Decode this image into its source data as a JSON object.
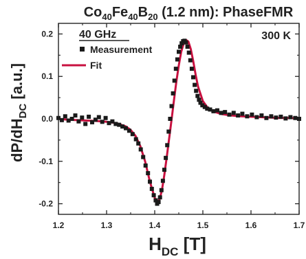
{
  "chart_data": {
    "type": "scatter",
    "title_parts": {
      "a": "Co",
      "a_sub": "40",
      "b": "Fe",
      "b_sub": "40",
      "c": "B",
      "c_sub": "20",
      "rest": " (1.2 nm): PhaseFMR"
    },
    "ylabel_parts": {
      "main": "dP/dH",
      "sub": "DC",
      "unit": " [a.u.]"
    },
    "xlabel_parts": {
      "main": "H",
      "sub": "DC",
      "unit": " [T]"
    },
    "xlim": [
      1.2,
      1.7
    ],
    "ylim": [
      -0.225,
      0.225
    ],
    "xticks": [
      1.2,
      1.3,
      1.4,
      1.5,
      1.6,
      1.7
    ],
    "xtick_labels": [
      "1.2",
      "1.3",
      "1.4",
      "1.5",
      "1.6",
      "1.7"
    ],
    "yticks": [
      -0.2,
      -0.1,
      0.0,
      0.1,
      0.2
    ],
    "ytick_labels": [
      "-0.2",
      "-0.1",
      "0.0",
      "0.1",
      "0.2"
    ],
    "annotations": {
      "frequency": "40 GHz",
      "temperature": "300 K"
    },
    "legend": {
      "position": "top-left"
    },
    "series": [
      {
        "name": "Measurement",
        "kind": "scatter",
        "color": "#1a1a1a",
        "x": [
          1.2,
          1.207,
          1.214,
          1.221,
          1.228,
          1.235,
          1.242,
          1.249,
          1.256,
          1.263,
          1.27,
          1.277,
          1.284,
          1.291,
          1.298,
          1.305,
          1.312,
          1.319,
          1.326,
          1.333,
          1.34,
          1.347,
          1.354,
          1.361,
          1.366,
          1.371,
          1.376,
          1.381,
          1.386,
          1.39,
          1.394,
          1.398,
          1.402,
          1.405,
          1.408,
          1.411,
          1.414,
          1.417,
          1.42,
          1.423,
          1.426,
          1.429,
          1.432,
          1.435,
          1.438,
          1.441,
          1.444,
          1.447,
          1.45,
          1.453,
          1.456,
          1.459,
          1.462,
          1.465,
          1.468,
          1.471,
          1.474,
          1.477,
          1.48,
          1.483,
          1.486,
          1.489,
          1.492,
          1.495,
          1.499,
          1.504,
          1.509,
          1.515,
          1.522,
          1.53,
          1.538,
          1.546,
          1.555,
          1.564,
          1.573,
          1.582,
          1.592,
          1.602,
          1.612,
          1.622,
          1.632,
          1.642,
          1.652,
          1.662,
          1.672,
          1.682,
          1.692,
          1.7
        ],
        "y": [
          0.002,
          -0.003,
          0.006,
          -0.004,
          0.0,
          0.008,
          -0.006,
          0.003,
          -0.012,
          0.005,
          -0.008,
          -0.002,
          0.004,
          -0.007,
          0.002,
          -0.01,
          -0.006,
          -0.012,
          -0.014,
          -0.018,
          -0.022,
          -0.028,
          -0.036,
          -0.048,
          -0.058,
          -0.072,
          -0.09,
          -0.11,
          -0.128,
          -0.148,
          -0.165,
          -0.18,
          -0.192,
          -0.2,
          -0.196,
          -0.185,
          -0.168,
          -0.146,
          -0.12,
          -0.092,
          -0.062,
          -0.03,
          0.0,
          0.03,
          0.06,
          0.09,
          0.118,
          0.14,
          0.158,
          0.17,
          0.178,
          0.183,
          0.184,
          0.18,
          0.17,
          0.156,
          0.138,
          0.118,
          0.098,
          0.08,
          0.066,
          0.054,
          0.045,
          0.038,
          0.032,
          0.028,
          0.024,
          0.022,
          0.018,
          0.02,
          0.014,
          0.016,
          0.01,
          0.014,
          0.008,
          0.012,
          0.006,
          0.01,
          0.004,
          0.008,
          0.002,
          0.006,
          0.003,
          0.005,
          0.001,
          0.004,
          0.002,
          0.0
        ],
        "marker": "square"
      },
      {
        "name": "Fit",
        "kind": "line",
        "color": "#c8103f",
        "x": [
          1.2,
          1.22,
          1.24,
          1.26,
          1.28,
          1.3,
          1.32,
          1.34,
          1.35,
          1.36,
          1.37,
          1.38,
          1.39,
          1.4,
          1.405,
          1.41,
          1.415,
          1.42,
          1.425,
          1.43,
          1.435,
          1.44,
          1.445,
          1.45,
          1.455,
          1.46,
          1.465,
          1.47,
          1.475,
          1.48,
          1.485,
          1.49,
          1.5,
          1.51,
          1.52,
          1.54,
          1.56,
          1.58,
          1.6,
          1.62,
          1.64,
          1.66,
          1.68,
          1.7
        ],
        "y": [
          0.0,
          -0.002,
          -0.003,
          -0.004,
          -0.005,
          -0.007,
          -0.01,
          -0.018,
          -0.026,
          -0.04,
          -0.064,
          -0.1,
          -0.148,
          -0.186,
          -0.196,
          -0.19,
          -0.168,
          -0.132,
          -0.09,
          -0.046,
          -0.002,
          0.044,
          0.088,
          0.126,
          0.158,
          0.177,
          0.186,
          0.182,
          0.164,
          0.136,
          0.104,
          0.076,
          0.042,
          0.026,
          0.018,
          0.011,
          0.008,
          0.006,
          0.005,
          0.004,
          0.003,
          0.002,
          0.002,
          0.001
        ]
      }
    ]
  }
}
